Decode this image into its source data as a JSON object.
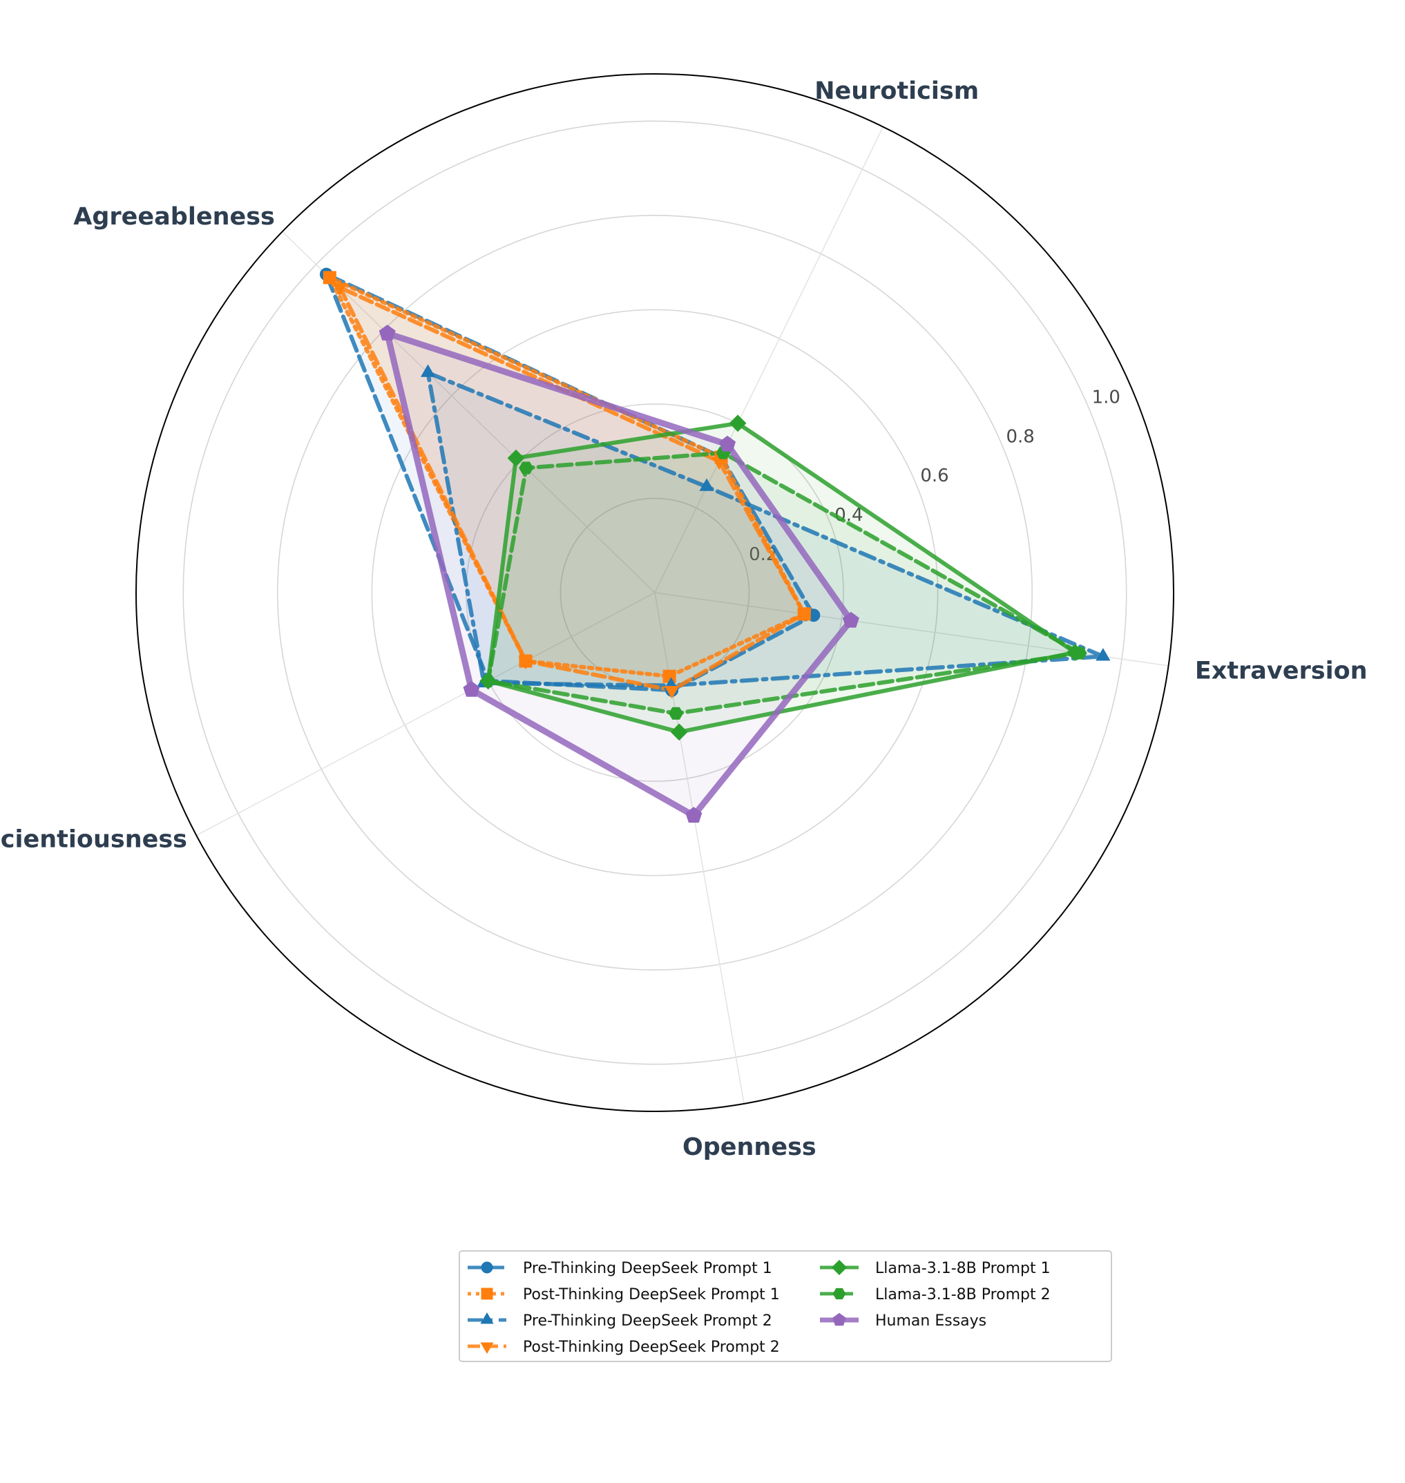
{
  "chart_data": {
    "type": "radar",
    "axes": [
      "Extraversion",
      "Neuroticism",
      "Agreeableness",
      "Conscientiousness",
      "Openness"
    ],
    "rticks": [
      "0.2",
      "0.4",
      "0.6",
      "0.8",
      "1.0"
    ],
    "rlim": [
      0,
      1.1
    ],
    "grid": true,
    "legend_position": "bottom-center",
    "series": [
      {
        "name": "Pre-Thinking DeepSeek Prompt 1",
        "values": [
          0.34,
          0.32,
          0.97,
          0.4,
          0.21
        ],
        "color": "#1f77b4",
        "dash": "22 9",
        "marker": "circle",
        "width": 6
      },
      {
        "name": "Post-Thinking DeepSeek Prompt 1",
        "values": [
          0.32,
          0.32,
          0.96,
          0.31,
          0.18
        ],
        "color": "#ff7f0e",
        "dash": "5 7",
        "marker": "square",
        "width": 6
      },
      {
        "name": "Pre-Thinking DeepSeek Prompt 2",
        "values": [
          0.96,
          0.25,
          0.67,
          0.41,
          0.2
        ],
        "color": "#1f77b4",
        "dash": "22 9 5 9",
        "marker": "triangle-up",
        "width": 6
      },
      {
        "name": "Post-Thinking DeepSeek Prompt 2",
        "values": [
          0.32,
          0.31,
          0.93,
          0.31,
          0.21
        ],
        "color": "#ff7f0e",
        "dash": "18 8",
        "marker": "triangle-down",
        "width": 6
      },
      {
        "name": "Llama-3.1-8B Prompt 1",
        "values": [
          0.9,
          0.4,
          0.41,
          0.4,
          0.3
        ],
        "color": "#2ca02c",
        "dash": "",
        "marker": "diamond",
        "width": 6
      },
      {
        "name": "Llama-3.1-8B Prompt 2",
        "values": [
          0.91,
          0.33,
          0.38,
          0.4,
          0.26
        ],
        "color": "#2ca02c",
        "dash": "20 8",
        "marker": "hexagon",
        "width": 6
      },
      {
        "name": "Human Essays",
        "values": [
          0.42,
          0.35,
          0.79,
          0.44,
          0.48
        ],
        "color": "#9467bd",
        "dash": "",
        "marker": "pentagon",
        "width": 9
      }
    ]
  }
}
